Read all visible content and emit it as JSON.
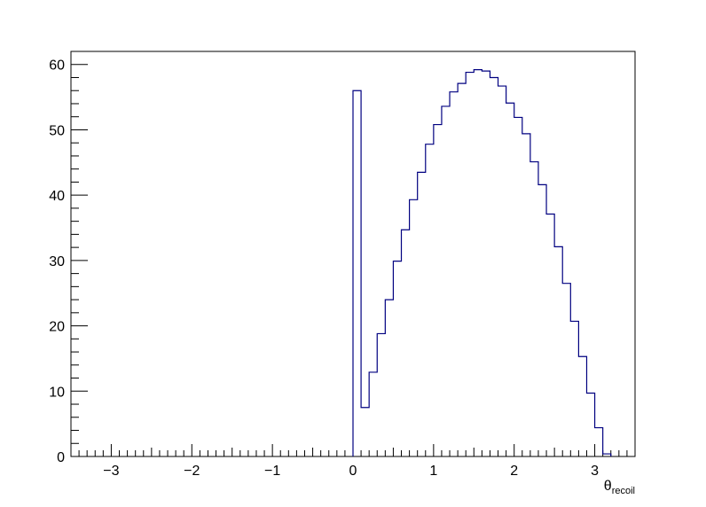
{
  "chart_data": {
    "type": "histogram",
    "title": "",
    "xlabel": "θ",
    "xlabel_subscript": "recoil",
    "ylabel": "",
    "xlim": [
      -3.5,
      3.5
    ],
    "ylim": [
      0,
      62
    ],
    "x_ticks": [
      -3,
      -2,
      -1,
      0,
      1,
      2,
      3
    ],
    "x_tick_labels": [
      "−3",
      "−2",
      "−1",
      "0",
      "1",
      "2",
      "3"
    ],
    "y_ticks": [
      0,
      10,
      20,
      30,
      40,
      50,
      60
    ],
    "y_tick_labels": [
      "0",
      "10",
      "20",
      "30",
      "40",
      "50",
      "60"
    ],
    "grid": false,
    "legend": "none",
    "line_color": "#000080",
    "bin_width": 0.1,
    "first_bin_low": 0.0,
    "values": [
      56.0,
      7.5,
      12.9,
      18.8,
      24.0,
      29.9,
      34.7,
      39.3,
      43.5,
      47.8,
      50.8,
      53.6,
      55.8,
      57.1,
      58.8,
      59.2,
      59.0,
      58.0,
      56.7,
      54.1,
      51.9,
      49.4,
      45.1,
      41.6,
      37.1,
      32.1,
      26.5,
      20.7,
      15.3,
      9.7,
      4.4,
      0.4
    ]
  }
}
